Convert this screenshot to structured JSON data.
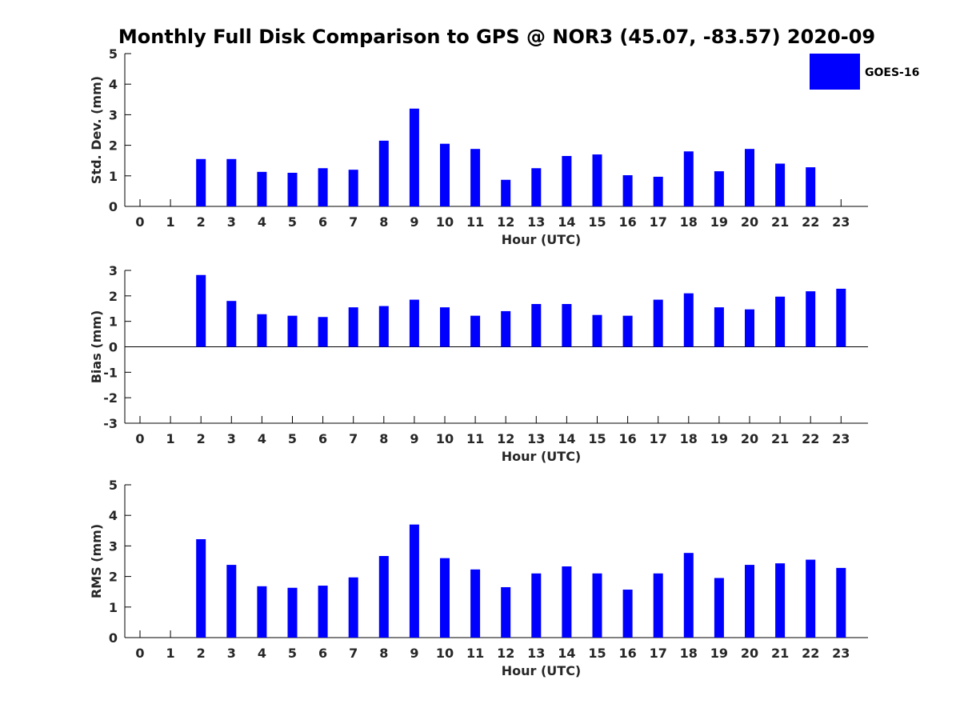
{
  "title": "Monthly Full Disk Comparison to GPS @ NOR3 (45.07, -83.57) 2020-09",
  "legend": {
    "label": "GOES-16",
    "color": "#0000ff",
    "placement": "top-right"
  },
  "chart_data": [
    {
      "type": "bar",
      "categories": [
        "0",
        "1",
        "2",
        "3",
        "4",
        "5",
        "6",
        "7",
        "8",
        "9",
        "10",
        "11",
        "12",
        "13",
        "14",
        "15",
        "16",
        "17",
        "18",
        "19",
        "20",
        "21",
        "22",
        "23"
      ],
      "series": [
        {
          "name": "GOES-16",
          "values": [
            null,
            null,
            1.55,
            1.55,
            1.13,
            1.1,
            1.25,
            1.2,
            2.15,
            3.2,
            2.05,
            1.88,
            0.87,
            1.25,
            1.65,
            1.7,
            1.02,
            0.97,
            1.8,
            1.15,
            1.88,
            1.4,
            1.28,
            null
          ]
        }
      ],
      "xlabel": "Hour (UTC)",
      "ylabel": "Std. Dev. (mm)",
      "ylim": [
        0,
        5
      ],
      "yticks": [
        "0",
        "1",
        "2",
        "3",
        "4",
        "5"
      ],
      "grid": false
    },
    {
      "type": "bar",
      "categories": [
        "0",
        "1",
        "2",
        "3",
        "4",
        "5",
        "6",
        "7",
        "8",
        "9",
        "10",
        "11",
        "12",
        "13",
        "14",
        "15",
        "16",
        "17",
        "18",
        "19",
        "20",
        "21",
        "22",
        "23"
      ],
      "series": [
        {
          "name": "GOES-16",
          "values": [
            null,
            null,
            2.82,
            1.8,
            1.28,
            1.22,
            1.17,
            1.55,
            1.6,
            1.85,
            1.55,
            1.22,
            1.4,
            1.68,
            1.68,
            1.25,
            1.22,
            1.85,
            2.1,
            1.55,
            1.47,
            1.97,
            2.18,
            2.28
          ]
        }
      ],
      "xlabel": "Hour (UTC)",
      "ylabel": "Bias (mm)",
      "ylim": [
        -3,
        3
      ],
      "yticks": [
        "-3",
        "-2",
        "-1",
        "0",
        "1",
        "2",
        "3"
      ],
      "grid": false
    },
    {
      "type": "bar",
      "categories": [
        "0",
        "1",
        "2",
        "3",
        "4",
        "5",
        "6",
        "7",
        "8",
        "9",
        "10",
        "11",
        "12",
        "13",
        "14",
        "15",
        "16",
        "17",
        "18",
        "19",
        "20",
        "21",
        "22",
        "23"
      ],
      "series": [
        {
          "name": "GOES-16",
          "values": [
            null,
            null,
            3.22,
            2.38,
            1.68,
            1.63,
            1.7,
            1.97,
            2.67,
            3.7,
            2.6,
            2.23,
            1.65,
            2.1,
            2.33,
            2.1,
            1.57,
            2.1,
            2.77,
            1.95,
            2.38,
            2.43,
            2.55,
            2.28
          ]
        }
      ],
      "xlabel": "Hour (UTC)",
      "ylabel": "RMS (mm)",
      "ylim": [
        0,
        5
      ],
      "yticks": [
        "0",
        "1",
        "2",
        "3",
        "4",
        "5"
      ],
      "grid": false
    }
  ]
}
